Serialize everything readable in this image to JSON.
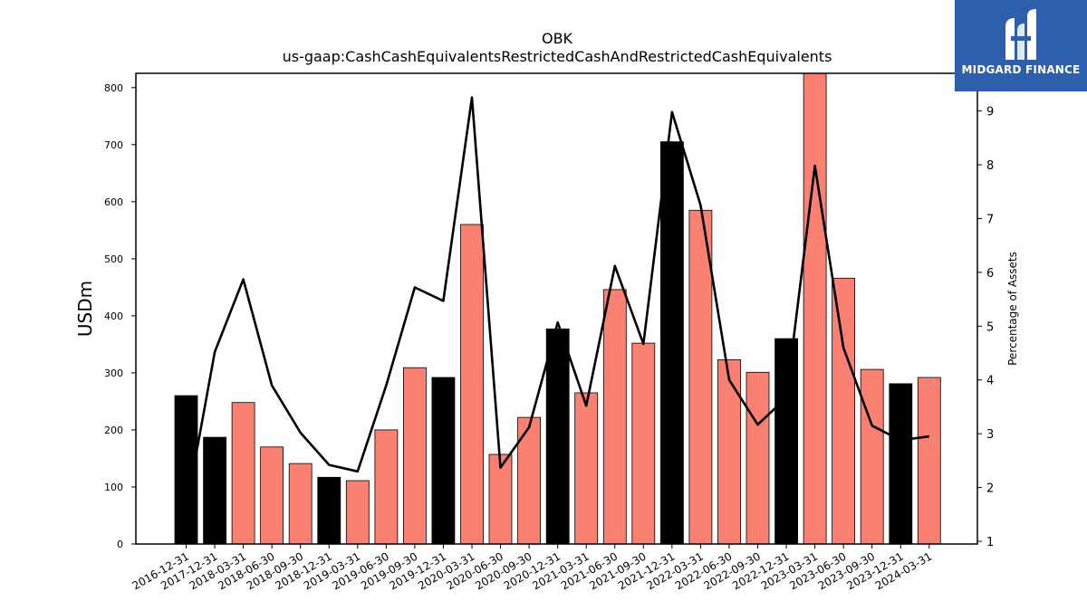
{
  "chart_data": {
    "type": "bar",
    "title": "OBK",
    "subtitle": "us-gaap:CashCashEquivalentsRestrictedCashAndRestrictedCashEquivalents",
    "ylabel": "USDm",
    "y2label": "Percentage of Assets",
    "ylim": [
      0,
      825
    ],
    "y2lim": [
      0.95,
      9.7
    ],
    "yticks": [
      0,
      100,
      200,
      300,
      400,
      500,
      600,
      700,
      800
    ],
    "y2ticks": [
      1,
      2,
      3,
      4,
      5,
      6,
      7,
      8,
      9
    ],
    "grid": false,
    "categories": [
      "2016-12-31",
      "2017-12-31",
      "2018-03-31",
      "2018-06-30",
      "2018-09-30",
      "2018-12-31",
      "2019-03-31",
      "2019-06-30",
      "2019-09-30",
      "2019-12-31",
      "2020-03-31",
      "2020-06-30",
      "2020-09-30",
      "2020-12-31",
      "2021-03-31",
      "2021-06-30",
      "2021-09-30",
      "2021-12-31",
      "2022-03-31",
      "2022-06-30",
      "2022-09-30",
      "2022-12-31",
      "2023-03-31",
      "2023-06-30",
      "2023-09-30",
      "2023-12-31",
      "2024-03-31"
    ],
    "series": [
      {
        "chart": "bar",
        "axis": "left",
        "values": [
          260,
          187,
          248,
          170,
          141,
          117,
          111,
          200,
          309,
          292,
          560,
          157,
          222,
          377,
          265,
          446,
          352,
          705,
          585,
          323,
          301,
          360,
          838,
          466,
          306,
          281,
          292
        ],
        "colors": [
          "#000000",
          "#000000",
          "#fa8072",
          "#fa8072",
          "#fa8072",
          "#000000",
          "#fa8072",
          "#fa8072",
          "#fa8072",
          "#000000",
          "#fa8072",
          "#fa8072",
          "#fa8072",
          "#000000",
          "#fa8072",
          "#fa8072",
          "#fa8072",
          "#000000",
          "#fa8072",
          "#fa8072",
          "#fa8072",
          "#000000",
          "#fa8072",
          "#fa8072",
          "#fa8072",
          "#000000",
          "#fa8072"
        ]
      },
      {
        "chart": "line",
        "axis": "right",
        "color": "#000000",
        "values": [
          1.6,
          4.52,
          5.87,
          3.9,
          3.02,
          2.42,
          2.3,
          3.9,
          5.72,
          5.47,
          9.25,
          2.37,
          3.12,
          5.07,
          3.52,
          6.12,
          4.67,
          8.98,
          7.25,
          4.0,
          3.17,
          3.67,
          7.98,
          4.6,
          3.15,
          2.88,
          2.95
        ]
      }
    ]
  },
  "logo": {
    "text": "MIDGARD FINANCE"
  }
}
